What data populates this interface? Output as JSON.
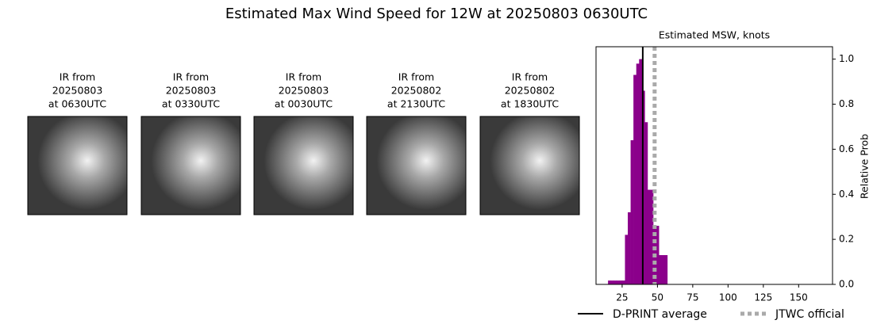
{
  "title": "Estimated Max Wind Speed for 12W at 20250803 0630UTC",
  "images": [
    {
      "lines": [
        "IR from",
        "20250803",
        "at 0630UTC"
      ]
    },
    {
      "lines": [
        "IR from",
        "20250803",
        "at 0330UTC"
      ]
    },
    {
      "lines": [
        "IR from",
        "20250803",
        "at 0030UTC"
      ]
    },
    {
      "lines": [
        "IR from",
        "20250802",
        "at 2130UTC"
      ]
    },
    {
      "lines": [
        "IR from",
        "20250802",
        "at 1830UTC"
      ]
    }
  ],
  "chart_data": {
    "type": "histogram",
    "title": "Estimated MSW, knots",
    "y_label": "Relative Prob",
    "color": "#8b008b",
    "bins": [
      15,
      17,
      19,
      21,
      23,
      25,
      27,
      29,
      31,
      33,
      35,
      37,
      39,
      41,
      43,
      45,
      47,
      49,
      51,
      53,
      55,
      57
    ],
    "values": [
      0.017,
      0.017,
      0.017,
      0.017,
      0.017,
      0.017,
      0.22,
      0.32,
      0.64,
      0.93,
      0.98,
      1.0,
      0.86,
      0.72,
      0.42,
      0.42,
      0.26,
      0.26,
      0.13,
      0.13,
      0.13
    ],
    "xlim": [
      6.5,
      174
    ],
    "xticks": [
      25,
      50,
      75,
      100,
      125,
      150
    ],
    "ylim": [
      0,
      1.055
    ],
    "yticks": [
      {
        "value": 0,
        "label": "0.0"
      },
      0.2,
      0.4,
      0.6,
      0.8,
      {
        "value": 1,
        "label": "1.0"
      }
    ],
    "reference_lines": [
      {
        "name": "D-PRINT average",
        "value": 39.6,
        "color": "#000000",
        "style": "solid"
      },
      {
        "name": "JTWC official",
        "value": 48,
        "color": "#aaaaaa",
        "style": "dotted"
      }
    ]
  }
}
